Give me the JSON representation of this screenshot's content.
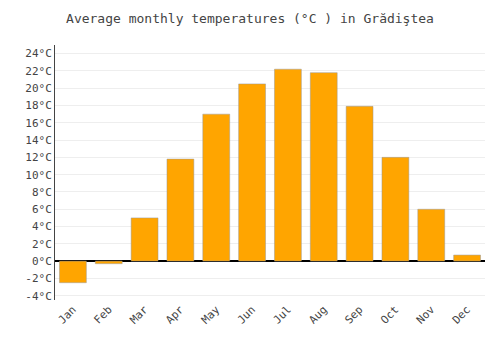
{
  "chart_data": {
    "type": "bar",
    "title": "Average monthly temperatures (°C ) in Grădiştea",
    "categories": [
      "Jan",
      "Feb",
      "Mar",
      "Apr",
      "May",
      "Jun",
      "Jul",
      "Aug",
      "Sep",
      "Oct",
      "Nov",
      "Dec"
    ],
    "values": [
      -2.5,
      -0.3,
      5.0,
      11.8,
      17.0,
      20.5,
      22.2,
      21.8,
      17.9,
      12.0,
      6.0,
      0.7
    ],
    "color": "#FFA500",
    "ylim": [
      -4.5,
      25
    ],
    "yticks": [
      {
        "value": -4,
        "label": "-4°C"
      },
      {
        "value": -2,
        "label": "-2°C"
      },
      {
        "value": 0,
        "label": "0°C"
      },
      {
        "value": 2,
        "label": "2°C"
      },
      {
        "value": 4,
        "label": "4°C"
      },
      {
        "value": 6,
        "label": "6°C"
      },
      {
        "value": 8,
        "label": "8°C"
      },
      {
        "value": 10,
        "label": "10°C"
      },
      {
        "value": 12,
        "label": "12°C"
      },
      {
        "value": 14,
        "label": "14°C"
      },
      {
        "value": 16,
        "label": "16°C"
      },
      {
        "value": 18,
        "label": "18°C"
      },
      {
        "value": 20,
        "label": "20°C"
      },
      {
        "value": 22,
        "label": "22°C"
      },
      {
        "value": 24,
        "label": "24°C"
      }
    ],
    "grid": true
  }
}
